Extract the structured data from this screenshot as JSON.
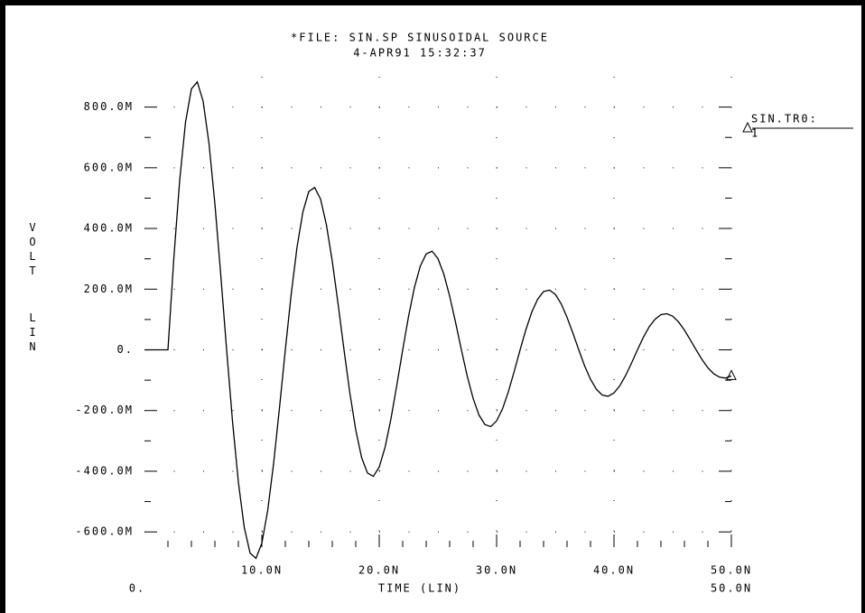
{
  "chart_data": {
    "type": "line",
    "title": "*FILE: SIN.SP  SINUSOIDAL SOURCE",
    "subtitle": "4-APR91 15:32:37",
    "x_label": "TIME (LIN)",
    "y_label": "VOLT",
    "y_scale_label": "LIN",
    "xlim": [
      0,
      5e-08
    ],
    "xticks": [
      {
        "value": 1e-08,
        "label": "10.0N"
      },
      {
        "value": 2e-08,
        "label": "20.0N"
      },
      {
        "value": 3e-08,
        "label": "30.0N"
      },
      {
        "value": 4e-08,
        "label": "40.0N"
      },
      {
        "value": 5e-08,
        "label": "50.0N"
      }
    ],
    "x_range_labels": [
      {
        "value": 0,
        "label": "0."
      },
      {
        "value": 5e-08,
        "label": "50.0N"
      }
    ],
    "ylim": [
      -0.65,
      0.9
    ],
    "yticks": [
      {
        "value": -0.6,
        "label": "-600.0M"
      },
      {
        "value": -0.4,
        "label": "-400.0M"
      },
      {
        "value": -0.2,
        "label": "-200.0M"
      },
      {
        "value": 0,
        "label": "0."
      },
      {
        "value": 0.2,
        "label": "200.0M"
      },
      {
        "value": 0.4,
        "label": "400.0M"
      },
      {
        "value": 0.6,
        "label": "600.0M"
      },
      {
        "value": 0.8,
        "label": "800.0M"
      }
    ],
    "grid": true,
    "legend_title": "SIN.TR0:",
    "x": [
      0,
      5e-10,
      1e-09,
      1.5e-09,
      2e-09,
      2.5e-09,
      3e-09,
      3.5e-09,
      4e-09,
      4.5e-09,
      5e-09,
      5.5e-09,
      6e-09,
      6.5e-09,
      7e-09,
      7.5e-09,
      8e-09,
      8.5e-09,
      9e-09,
      9.5e-09,
      1e-08,
      1.05e-08,
      1.1e-08,
      1.15e-08,
      1.2e-08,
      1.25e-08,
      1.3e-08,
      1.35e-08,
      1.4e-08,
      1.45e-08,
      1.5e-08,
      1.55e-08,
      1.6e-08,
      1.65e-08,
      1.7e-08,
      1.75e-08,
      1.8e-08,
      1.85e-08,
      1.9e-08,
      1.95e-08,
      2e-08,
      2.05e-08,
      2.1e-08,
      2.15e-08,
      2.2e-08,
      2.25e-08,
      2.3e-08,
      2.35e-08,
      2.4e-08,
      2.45e-08,
      2.5e-08,
      2.55e-08,
      2.6e-08,
      2.65e-08,
      2.7e-08,
      2.75e-08,
      2.8e-08,
      2.85e-08,
      2.9e-08,
      2.95e-08,
      3e-08,
      3.05e-08,
      3.1e-08,
      3.15e-08,
      3.2e-08,
      3.25e-08,
      3.3e-08,
      3.35e-08,
      3.4e-08,
      3.45e-08,
      3.5e-08,
      3.55e-08,
      3.6e-08,
      3.65e-08,
      3.7e-08,
      3.75e-08,
      3.8e-08,
      3.85e-08,
      3.9e-08,
      3.95e-08,
      4e-08,
      4.05e-08,
      4.1e-08,
      4.15e-08,
      4.2e-08,
      4.25e-08,
      4.3e-08,
      4.35e-08,
      4.4e-08,
      4.45e-08,
      4.5e-08,
      4.55e-08,
      4.6e-08,
      4.65e-08,
      4.7e-08,
      4.75e-08,
      4.8e-08,
      4.85e-08,
      4.9e-08,
      4.95e-08,
      5e-08
    ],
    "series": [
      {
        "name": "1",
        "color": "#000000",
        "values": [
          0,
          0,
          0,
          0,
          0,
          0.301,
          0.559,
          0.751,
          0.86,
          0.883,
          0.819,
          0.679,
          0.481,
          0.247,
          0,
          -0.235,
          -0.436,
          -0.585,
          -0.67,
          -0.687,
          -0.637,
          -0.529,
          -0.375,
          -0.192,
          0,
          0.183,
          0.339,
          0.455,
          0.522,
          0.535,
          0.497,
          0.412,
          0.292,
          0.15,
          0,
          -0.143,
          -0.264,
          -0.355,
          -0.406,
          -0.417,
          -0.386,
          -0.321,
          -0.227,
          -0.116,
          0,
          0.111,
          0.206,
          0.276,
          0.316,
          0.325,
          0.301,
          0.25,
          0.177,
          0.091,
          0,
          -0.087,
          -0.16,
          -0.215,
          -0.246,
          -0.253,
          -0.234,
          -0.195,
          -0.138,
          -0.071,
          0,
          0.067,
          0.125,
          0.167,
          0.192,
          0.197,
          0.183,
          0.152,
          0.107,
          0.055,
          0,
          -0.053,
          -0.097,
          -0.13,
          -0.149,
          -0.153,
          -0.142,
          -0.118,
          -0.084,
          -0.043,
          0,
          0.041,
          0.076,
          0.101,
          0.116,
          0.119,
          0.111,
          0.092,
          0.065,
          0.033,
          0,
          -0.032,
          -0.059,
          -0.079,
          -0.09,
          -0.093,
          -0.086
        ]
      }
    ]
  }
}
